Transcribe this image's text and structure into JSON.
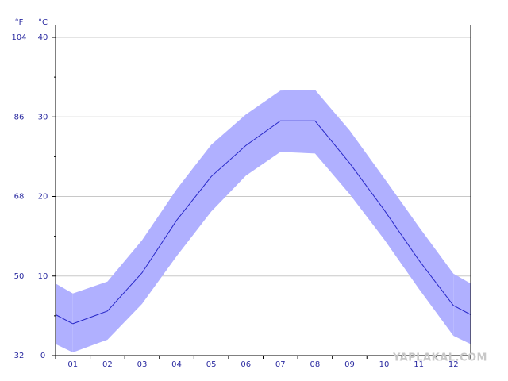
{
  "chart_data": {
    "type": "band-line",
    "categories": [
      "01",
      "02",
      "03",
      "04",
      "05",
      "06",
      "07",
      "08",
      "09",
      "10",
      "11",
      "12"
    ],
    "series": [
      {
        "color": "#b0b0ff",
        "values": [
          0.4,
          2.0,
          6.5,
          12.5,
          18.1,
          22.6,
          25.6,
          25.4,
          20.3,
          14.6,
          8.4,
          2.5
        ]
      },
      {
        "color": "#2828c8",
        "values": [
          4.0,
          5.6,
          10.4,
          17.0,
          22.5,
          26.4,
          29.5,
          29.5,
          24.2,
          18.3,
          12.0,
          6.3
        ]
      },
      {
        "color": "#b0b0ff",
        "values": [
          7.8,
          9.3,
          14.5,
          20.9,
          26.5,
          30.3,
          33.3,
          33.4,
          28.3,
          22.3,
          16.2,
          10.3
        ]
      }
    ],
    "ylabel": "°C",
    "y2label": "°F",
    "ylim": [
      0,
      40
    ],
    "yticks": [
      0,
      10,
      20,
      30,
      40
    ],
    "minor_yticks": [
      5,
      15,
      25,
      35
    ],
    "y2lim": [
      32,
      104
    ],
    "y2ticks": [
      32,
      50,
      68,
      86,
      104
    ],
    "grid": true,
    "watermark": "YAPLAKAL.COM"
  }
}
